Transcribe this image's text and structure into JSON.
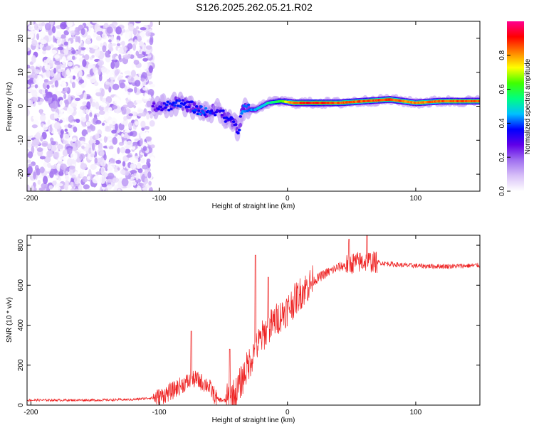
{
  "title": "S126.2025.262.05.21.R02",
  "colors": {
    "snr_line": "#ee2222",
    "axis": "#000000",
    "background": "#ffffff"
  },
  "chart_data": [
    {
      "type": "heatmap",
      "name": "spectrogram",
      "xlabel": "Height of straight line (km)",
      "ylabel": "Frequency (Hz)",
      "xlim": [
        -203,
        150
      ],
      "ylim": [
        -25,
        25
      ],
      "xticks": [
        "-200",
        "-100",
        "0",
        "100"
      ],
      "xtick_values": [
        -200,
        -100,
        0,
        100
      ],
      "yticks": [
        "20",
        "10",
        "0",
        "-10",
        "-20"
      ],
      "ytick_values": [
        20,
        10,
        0,
        -10,
        -20
      ],
      "noise_region": {
        "x_range": [
          -203,
          -105
        ],
        "freq_range": [
          -25,
          25
        ],
        "amplitude_range": [
          0.0,
          0.2
        ]
      },
      "signal_track": [
        {
          "x": -105,
          "f": 0,
          "amp": 0.25
        },
        {
          "x": -95,
          "f": 0,
          "amp": 0.35
        },
        {
          "x": -85,
          "f": 1,
          "amp": 0.35
        },
        {
          "x": -75,
          "f": 0,
          "amp": 0.35
        },
        {
          "x": -65,
          "f": -2,
          "amp": 0.4
        },
        {
          "x": -55,
          "f": -1,
          "amp": 0.3
        },
        {
          "x": -45,
          "f": -4,
          "amp": 0.35
        },
        {
          "x": -38,
          "f": -7,
          "amp": 0.35
        },
        {
          "x": -35,
          "f": -1,
          "amp": 0.4
        },
        {
          "x": -25,
          "f": -1,
          "amp": 0.45
        },
        {
          "x": -15,
          "f": 1,
          "amp": 0.5
        },
        {
          "x": -5,
          "f": 1.5,
          "amp": 0.6
        },
        {
          "x": 5,
          "f": 1,
          "amp": 0.85
        },
        {
          "x": 20,
          "f": 1,
          "amp": 0.9
        },
        {
          "x": 40,
          "f": 1,
          "amp": 0.85
        },
        {
          "x": 60,
          "f": 1.5,
          "amp": 0.85
        },
        {
          "x": 80,
          "f": 2,
          "amp": 0.85
        },
        {
          "x": 100,
          "f": 1,
          "amp": 0.8
        },
        {
          "x": 120,
          "f": 1.5,
          "amp": 0.85
        },
        {
          "x": 150,
          "f": 1.5,
          "amp": 0.85
        }
      ],
      "colorbar": {
        "label": "Normalized spectral amplitude",
        "range": [
          0,
          1
        ],
        "ticks": [
          "0.0",
          "0.2",
          "0.4",
          "0.6",
          "0.8"
        ],
        "tick_values": [
          0.0,
          0.2,
          0.4,
          0.6,
          0.8
        ],
        "colorscale": [
          "#ffffff",
          "#d8c0f8",
          "#a070f0",
          "#6000e8",
          "#0000ff",
          "#00c0ff",
          "#00ff80",
          "#40ff00",
          "#ffff00",
          "#ff8000",
          "#ff0000",
          "#ff0090"
        ]
      }
    },
    {
      "type": "line",
      "name": "snr",
      "xlabel": "Height of straight line (km)",
      "ylabel": "SNR (10 * v/v)",
      "xlim": [
        -203,
        150
      ],
      "ylim": [
        0,
        850
      ],
      "xticks": [
        "-200",
        "-100",
        "0",
        "100"
      ],
      "xtick_values": [
        -200,
        -100,
        0,
        100
      ],
      "yticks": [
        "0",
        "200",
        "400",
        "600",
        "800"
      ],
      "ytick_values": [
        0,
        200,
        400,
        600,
        800
      ],
      "trend": [
        {
          "x": -203,
          "y": 25
        },
        {
          "x": -150,
          "y": 25
        },
        {
          "x": -120,
          "y": 28
        },
        {
          "x": -100,
          "y": 40
        },
        {
          "x": -90,
          "y": 70
        },
        {
          "x": -80,
          "y": 110
        },
        {
          "x": -72,
          "y": 130
        },
        {
          "x": -62,
          "y": 100
        },
        {
          "x": -55,
          "y": 30
        },
        {
          "x": -48,
          "y": 20
        },
        {
          "x": -40,
          "y": 60
        },
        {
          "x": -32,
          "y": 180
        },
        {
          "x": -25,
          "y": 280
        },
        {
          "x": -18,
          "y": 360
        },
        {
          "x": -10,
          "y": 420
        },
        {
          "x": 0,
          "y": 480
        },
        {
          "x": 10,
          "y": 560
        },
        {
          "x": 20,
          "y": 620
        },
        {
          "x": 30,
          "y": 660
        },
        {
          "x": 40,
          "y": 690
        },
        {
          "x": 50,
          "y": 710
        },
        {
          "x": 62,
          "y": 720
        },
        {
          "x": 75,
          "y": 710
        },
        {
          "x": 90,
          "y": 700
        },
        {
          "x": 110,
          "y": 695
        },
        {
          "x": 130,
          "y": 695
        },
        {
          "x": 150,
          "y": 700
        }
      ],
      "spikes": [
        {
          "x": -75,
          "y": 370
        },
        {
          "x": -45,
          "y": 280
        },
        {
          "x": -25,
          "y": 750
        },
        {
          "x": -15,
          "y": 640
        },
        {
          "x": 48,
          "y": 830
        },
        {
          "x": 62,
          "y": 850
        }
      ]
    }
  ]
}
